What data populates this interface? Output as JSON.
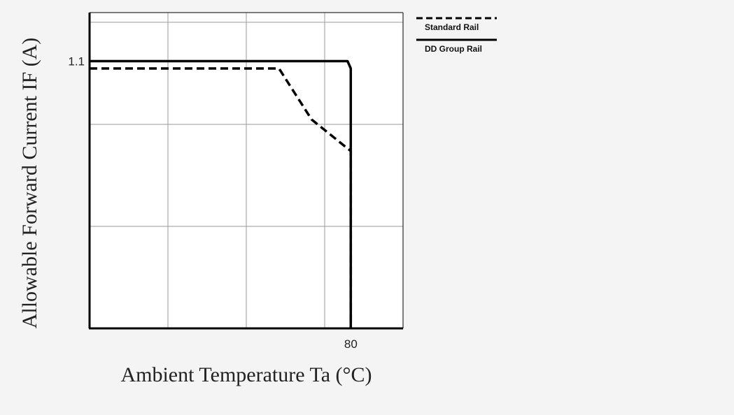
{
  "colors": {
    "background": "#f4f4f4",
    "plot_background": "#ffffff",
    "axis": "#000000",
    "grid": "#9a9a9a",
    "series": "#000000"
  },
  "chart_data": {
    "type": "line",
    "title": "",
    "xlabel": "Ambient Temperature Ta (°C)",
    "ylabel": "Allowable Forward Current IF (A)",
    "xlim": [
      0,
      96
    ],
    "ylim": [
      0,
      1.3
    ],
    "grid": true,
    "legend_position": "outside-top-right",
    "x_tick_labels": [
      {
        "value": 80,
        "label": "80"
      }
    ],
    "y_tick_labels": [
      {
        "value": 1.1,
        "label": "1.1"
      }
    ],
    "x_grid_values": [
      24,
      48,
      72
    ],
    "y_grid_values": [
      0.42,
      0.84,
      1.26
    ],
    "series": [
      {
        "name": "Standard Rail",
        "style": "dashed",
        "points": [
          [
            0,
            1.07
          ],
          [
            58,
            1.07
          ],
          [
            68,
            0.86
          ],
          [
            80,
            0.73
          ],
          [
            80,
            0
          ]
        ]
      },
      {
        "name": "DD Group Rail",
        "style": "solid",
        "points": [
          [
            0,
            1.1
          ],
          [
            79,
            1.1
          ],
          [
            80,
            1.07
          ],
          [
            80,
            0
          ]
        ]
      }
    ]
  }
}
